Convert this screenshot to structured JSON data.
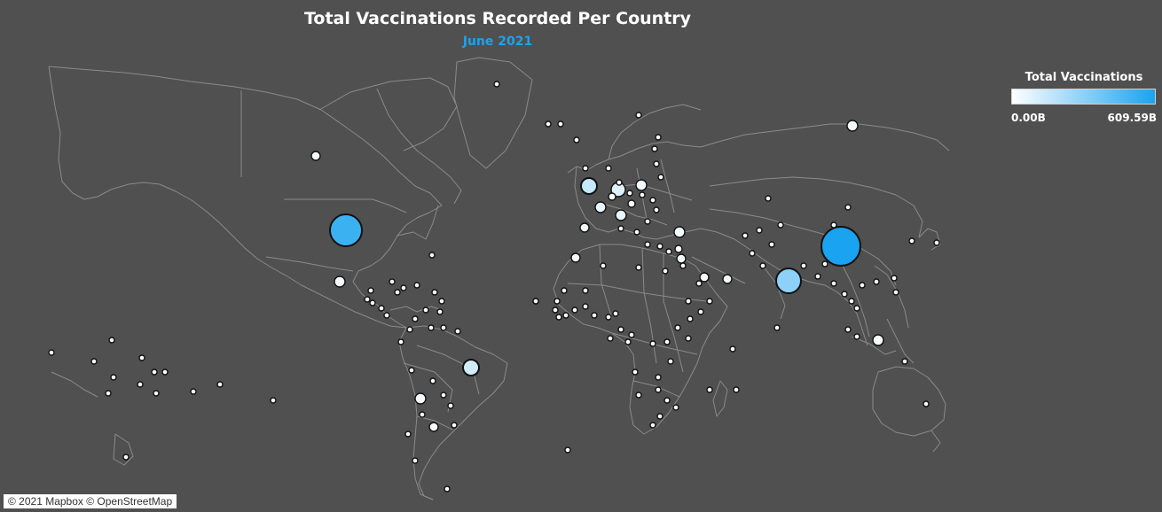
{
  "title": "Total Vaccinations Recorded Per Country",
  "subtitle": "June 2021",
  "legend": {
    "title": "Total Vaccinations",
    "min_label": "0.00B",
    "max_label": "609.59B",
    "color_low": "#ffffff",
    "color_high": "#1aa3f0"
  },
  "attribution": "© 2021 Mapbox © OpenStreetMap",
  "colors": {
    "background": "#505050",
    "borders": "#8a8a8a",
    "accent": "#1aa3f0"
  }
}
